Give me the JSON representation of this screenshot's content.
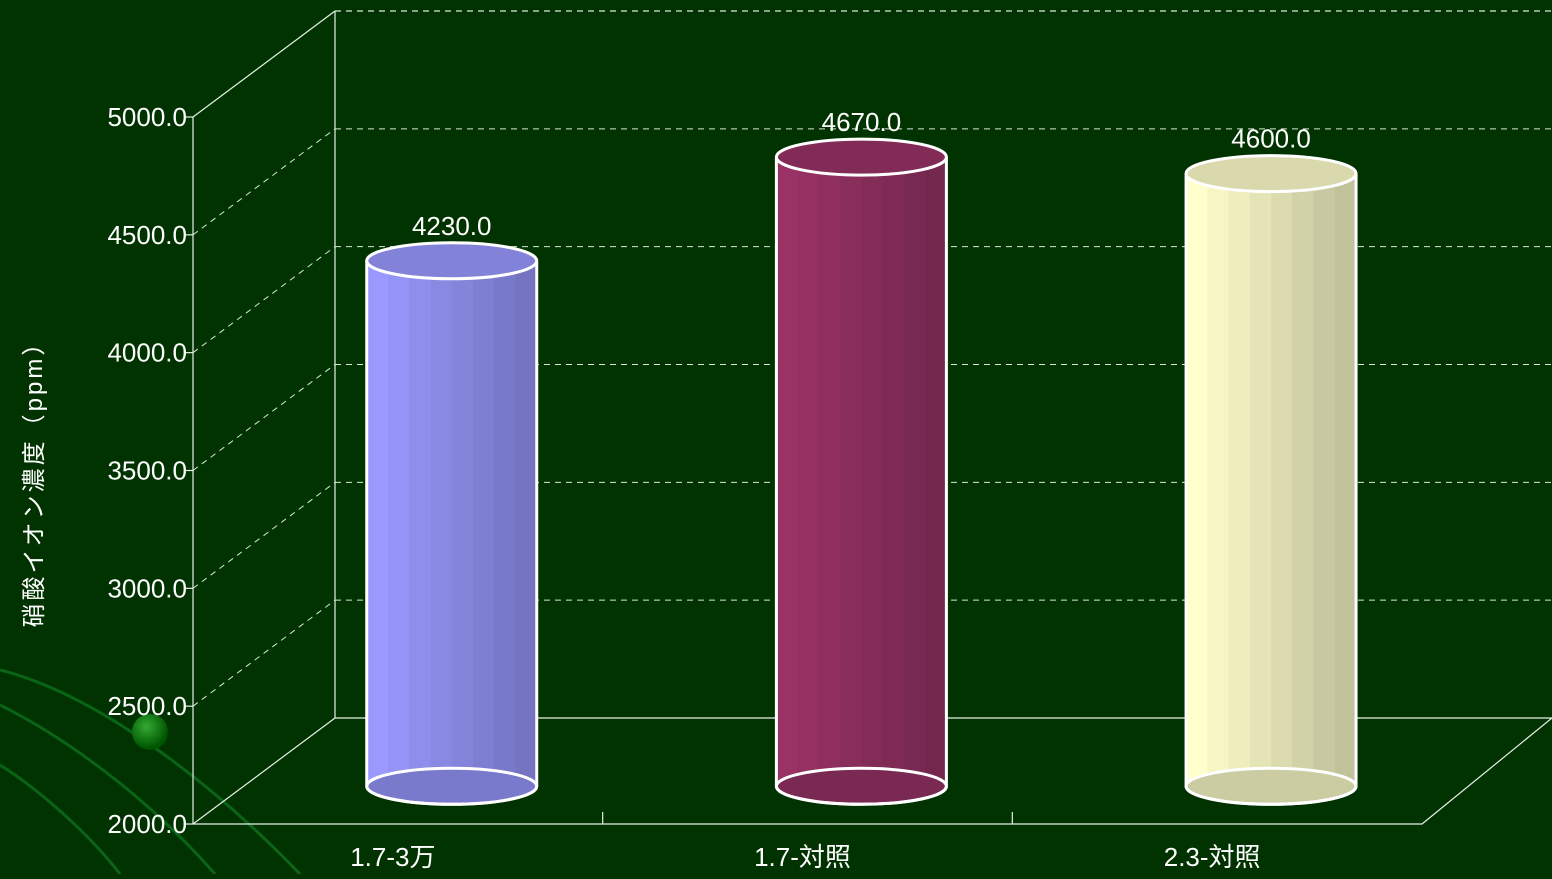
{
  "chart_data": {
    "type": "bar",
    "style": "3d-cylinder",
    "title": "",
    "xlabel": "",
    "ylabel": "硝酸イオン濃度（ppm）",
    "categories": [
      "1.7‐3万",
      "1.7‐対照",
      "2.3‐対照"
    ],
    "values": [
      4230.0,
      4670.0,
      4600.0
    ],
    "value_labels": [
      "4230.0",
      "4670.0",
      "4600.0"
    ],
    "ylim": [
      2000,
      5000
    ],
    "yticks": [
      "2000.0",
      "2500.0",
      "3000.0",
      "3500.0",
      "4000.0",
      "4500.0",
      "5000.0"
    ],
    "grid": "dashed horizontal",
    "colors": [
      "#9999ff",
      "#993366",
      "#ffffcc"
    ],
    "background": "#003300"
  }
}
